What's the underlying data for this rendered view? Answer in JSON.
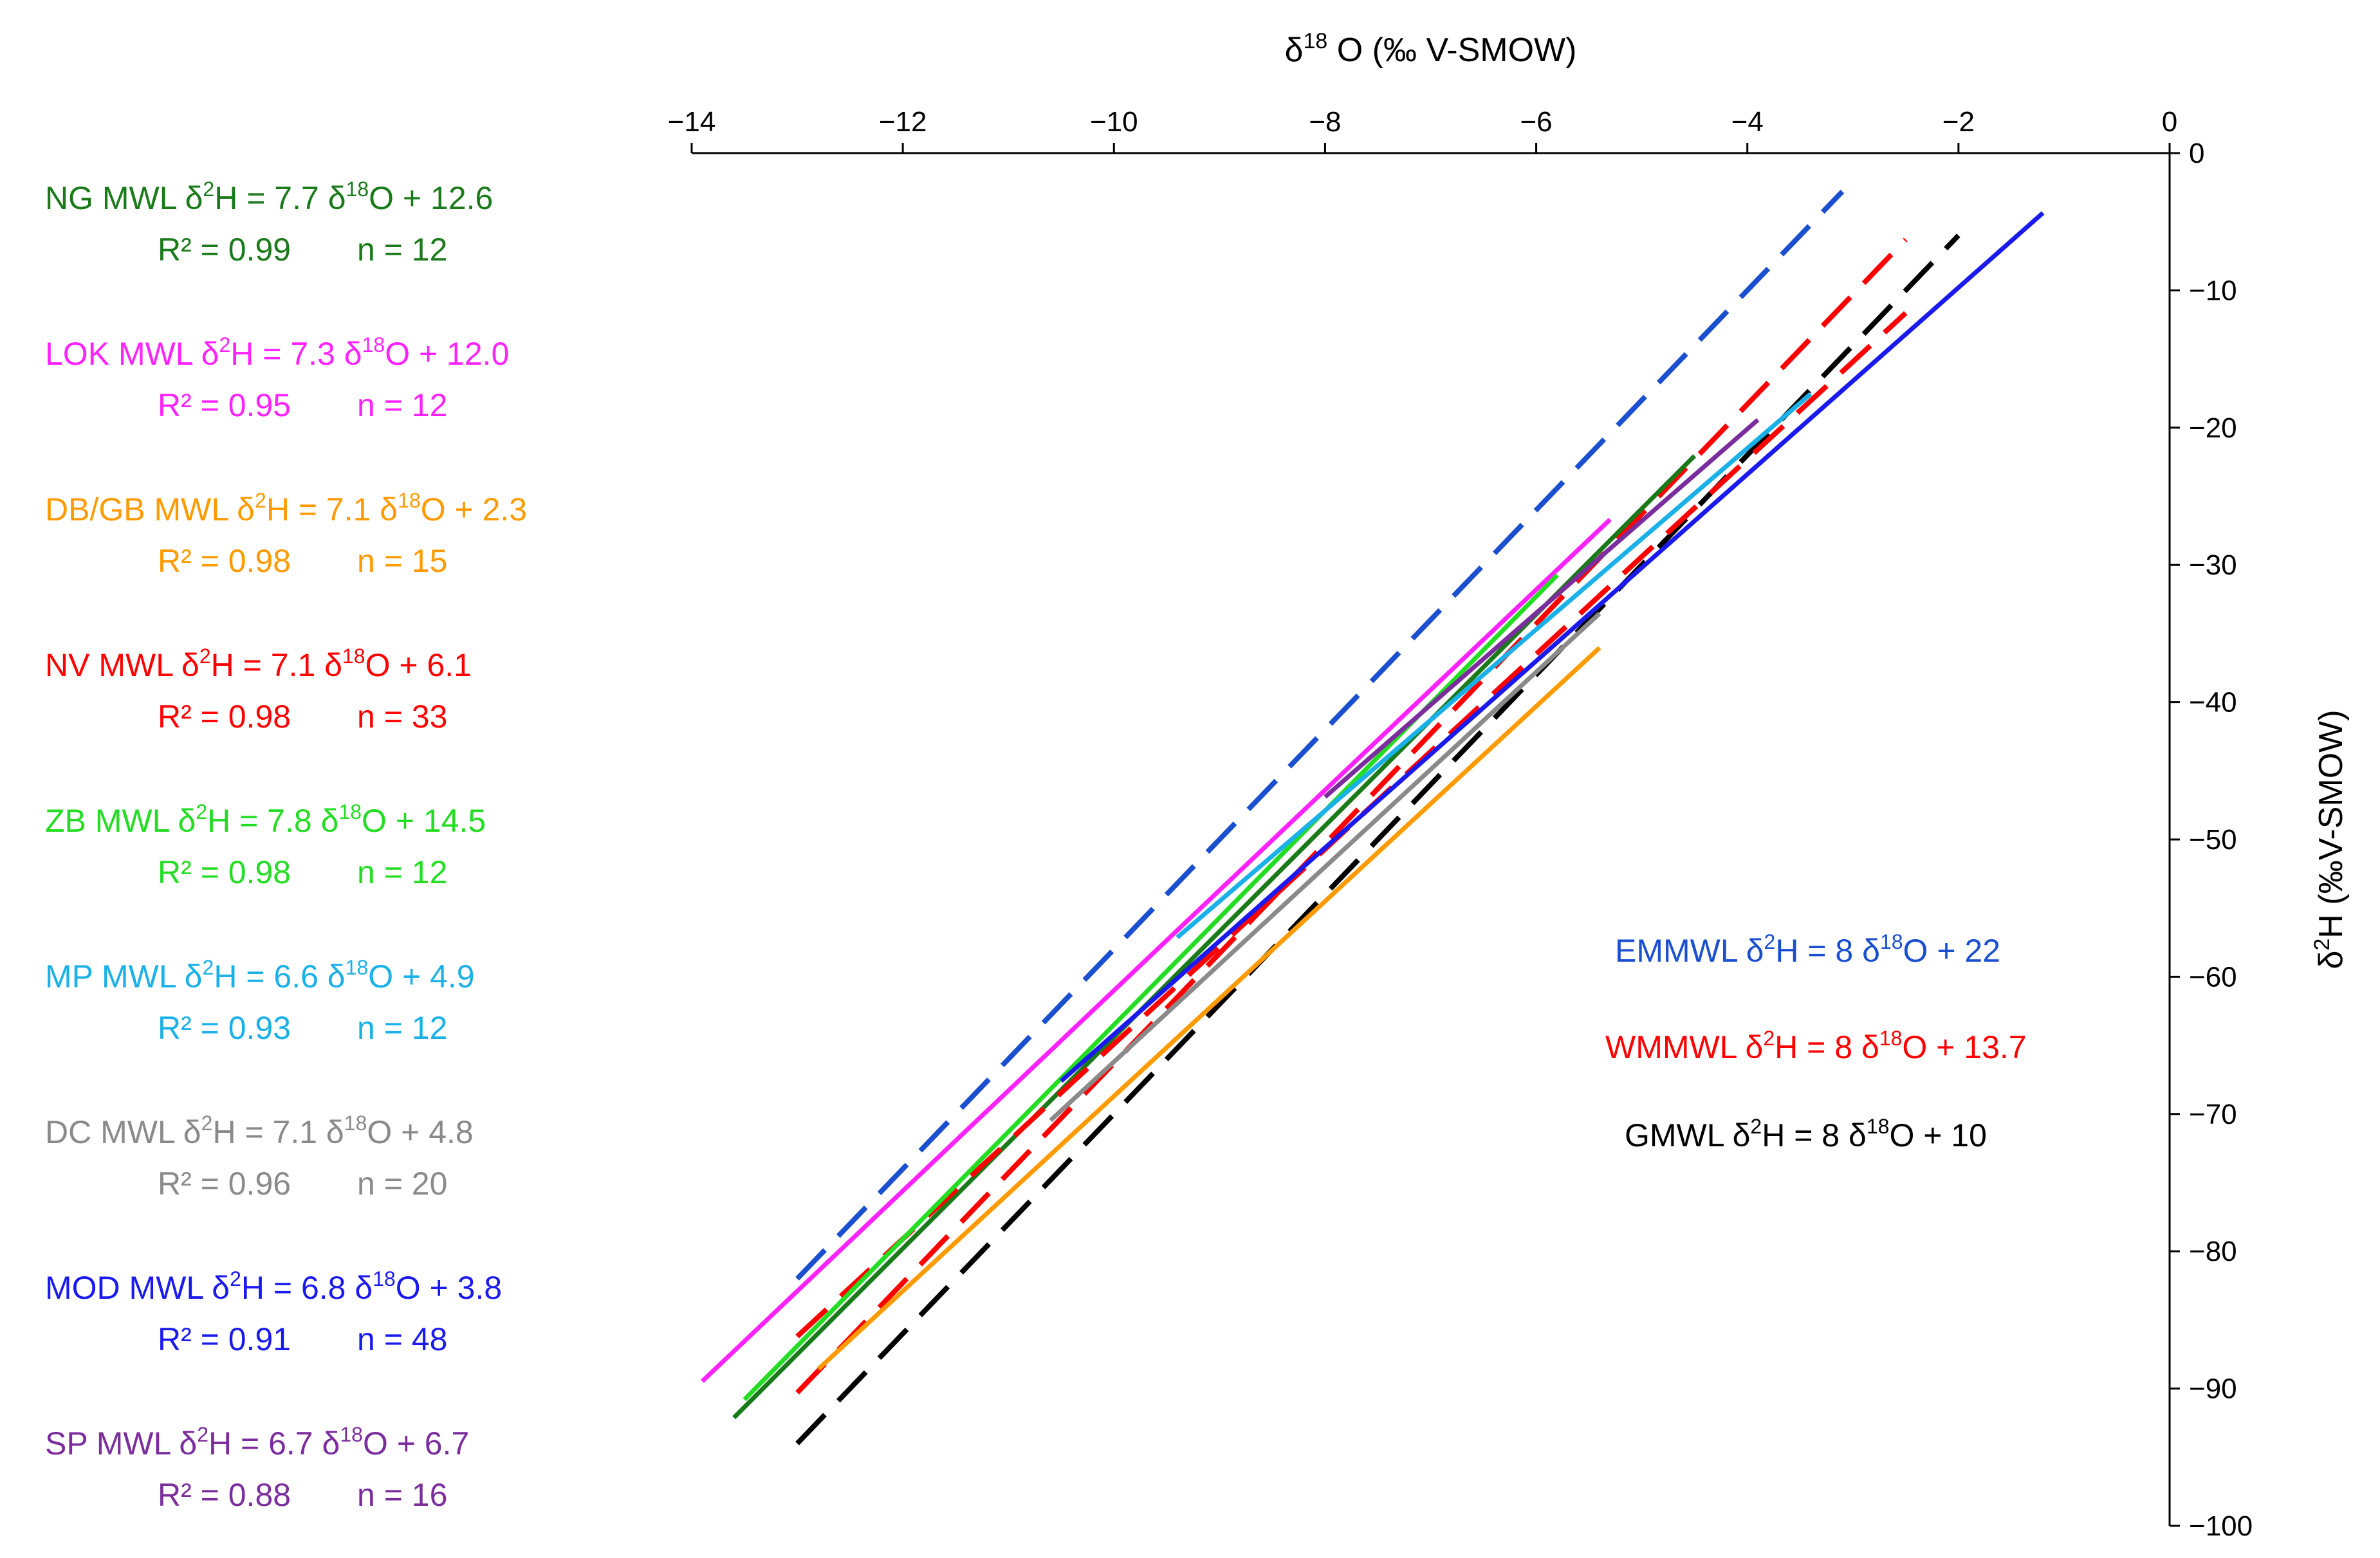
{
  "chart_data": {
    "type": "line",
    "x_axis": {
      "label": "δ18O (‰ V-SMOW)",
      "label_base": "δ",
      "label_sup": "18",
      "label_rest": "O (‰ V-SMOW)",
      "position": "top",
      "range": [
        -14,
        0
      ],
      "ticks": [
        -14,
        -12,
        -10,
        -8,
        -6,
        -4,
        -2,
        0
      ],
      "tick_labels": [
        "−14",
        "−12",
        "−10",
        "−8",
        "−6",
        "−4",
        "−2",
        "0"
      ]
    },
    "y_axis": {
      "label": "δ2H (‰V-SMOW)",
      "label_base": "δ",
      "label_sup": "2",
      "label_rest": "H (‰V-SMOW)",
      "position": "right",
      "range": [
        -100,
        0
      ],
      "ticks": [
        0,
        -10,
        -20,
        -30,
        -40,
        -50,
        -60,
        -70,
        -80,
        -90,
        -100
      ],
      "tick_labels": [
        "0",
        "−10",
        "−20",
        "−30",
        "−40",
        "−50",
        "−60",
        "−70",
        "−80",
        "−90",
        "−100"
      ]
    },
    "series": [
      {
        "name": "NG MWL",
        "slope": 7.7,
        "intercept": 12.6,
        "x_range": [
          -13.6,
          -4.5
        ],
        "color": "#1a7a1a",
        "dashed": false,
        "eq_prefix": " δ",
        "eq_mid": "H = 7.7 δ",
        "eq_end": "O + 12.6",
        "r2": "R² = 0.99",
        "n": "n = 12"
      },
      {
        "name": "LOK MWL",
        "slope": 7.3,
        "intercept": 12.0,
        "x_range": [
          -13.9,
          -5.3
        ],
        "color": "#ff22ff",
        "dashed": false,
        "eq_prefix": " δ",
        "eq_mid": "H = 7.3 δ",
        "eq_end": "O + 12.0",
        "r2": "R² = 0.95",
        "n": "n = 12"
      },
      {
        "name": "DB/GB MWL",
        "slope": 7.1,
        "intercept": 2.3,
        "x_range": [
          -12.8,
          -5.4
        ],
        "color": "#ff9a00",
        "dashed": false,
        "eq_prefix": " δ",
        "eq_mid": "H = 7.1 δ",
        "eq_end": "O + 2.3",
        "r2": "R² = 0.98",
        "n": "n = 15"
      },
      {
        "name": "NV MWL",
        "slope": 7.1,
        "intercept": 6.1,
        "x_range": [
          -13.0,
          -2.5
        ],
        "color": "#ff0000",
        "dashed": true,
        "eq_prefix": " δ",
        "eq_mid": "H = 7.1 δ",
        "eq_end": "O + 6.1",
        "r2": "R² = 0.98",
        "n": "n = 33"
      },
      {
        "name": "ZB MWL",
        "slope": 7.8,
        "intercept": 14.5,
        "x_range": [
          -13.5,
          -5.8
        ],
        "color": "#22dd22",
        "dashed": false,
        "eq_prefix": " δ",
        "eq_mid": "H = 7.8 δ",
        "eq_end": "O + 14.5",
        "r2": "R² = 0.98",
        "n": "n = 12"
      },
      {
        "name": "MP MWL",
        "slope": 6.6,
        "intercept": 4.9,
        "x_range": [
          -9.4,
          -3.4
        ],
        "color": "#1ab0e8",
        "dashed": false,
        "eq_prefix": " δ",
        "eq_mid": "H = 6.6 δ",
        "eq_end": "O + 4.9",
        "r2": "R² = 0.93",
        "n": "n = 12"
      },
      {
        "name": "DC MWL",
        "slope": 7.1,
        "intercept": 4.8,
        "x_range": [
          -10.6,
          -5.4
        ],
        "color": "#8a8a8a",
        "dashed": false,
        "eq_prefix": " δ",
        "eq_mid": "H = 7.1 δ",
        "eq_end": "O + 4.8",
        "r2": "R² = 0.96",
        "n": "n = 20"
      },
      {
        "name": "MOD MWL",
        "slope": 6.8,
        "intercept": 3.8,
        "x_range": [
          -10.5,
          -1.2
        ],
        "color": "#1a1aee",
        "dashed": false,
        "eq_prefix": " δ",
        "eq_mid": "H = 6.8 δ",
        "eq_end": "O + 3.8",
        "r2": "R² = 0.91",
        "n": "n = 48"
      },
      {
        "name": "SP MWL",
        "slope": 6.7,
        "intercept": 6.7,
        "x_range": [
          -8.0,
          -3.9
        ],
        "color": "#7b2d9e",
        "dashed": false,
        "eq_prefix": " δ",
        "eq_mid": "H = 6.7 δ",
        "eq_end": "O + 6.7",
        "r2": "R² = 0.88",
        "n": "n = 16"
      }
    ],
    "reference_lines": [
      {
        "name": "EMMWL",
        "slope": 8,
        "intercept": 22,
        "x_range": [
          -13.0,
          -3.1
        ],
        "color": "#1a4fd0",
        "dashed": true,
        "eq_prefix": " δ",
        "eq_mid": "H  = 8 δ",
        "eq_end": "O + 22"
      },
      {
        "name": "WMMWL",
        "slope": 8,
        "intercept": 13.7,
        "x_range": [
          -13.0,
          -2.5
        ],
        "color": "#ff0000",
        "dashed": true,
        "eq_prefix": " δ",
        "eq_mid": "H  = 8 δ",
        "eq_end": "O + 13.7"
      },
      {
        "name": "GMWL",
        "slope": 8,
        "intercept": 10,
        "x_range": [
          -13.0,
          -2.0
        ],
        "color": "#000000",
        "dashed": true,
        "eq_prefix": " δ",
        "eq_mid": "H = 8 δ",
        "eq_end": "O + 10"
      }
    ],
    "superscripts": {
      "h": "2",
      "o": "18"
    }
  }
}
